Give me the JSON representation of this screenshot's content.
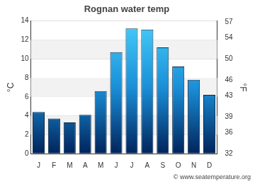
{
  "chart_data": {
    "type": "bar",
    "title": "Rognan water temp",
    "categories": [
      "J",
      "F",
      "M",
      "A",
      "M",
      "J",
      "J",
      "A",
      "S",
      "O",
      "N",
      "D"
    ],
    "values": [
      4.4,
      3.7,
      3.3,
      4.1,
      6.6,
      10.7,
      13.2,
      13.1,
      11.2,
      9.2,
      7.8,
      6.2
    ],
    "color": "#1a8fd8",
    "y_label": "°C",
    "ylim": [
      0,
      14
    ],
    "yticks": [
      0,
      2,
      4,
      6,
      8,
      10,
      12,
      14
    ],
    "y2_label": "°F",
    "y2lim": [
      32,
      57.2
    ],
    "y2ticks": [
      32,
      36,
      39,
      43,
      46,
      50,
      54,
      57
    ],
    "grid": true,
    "source": "© www.seatemperature.org"
  }
}
